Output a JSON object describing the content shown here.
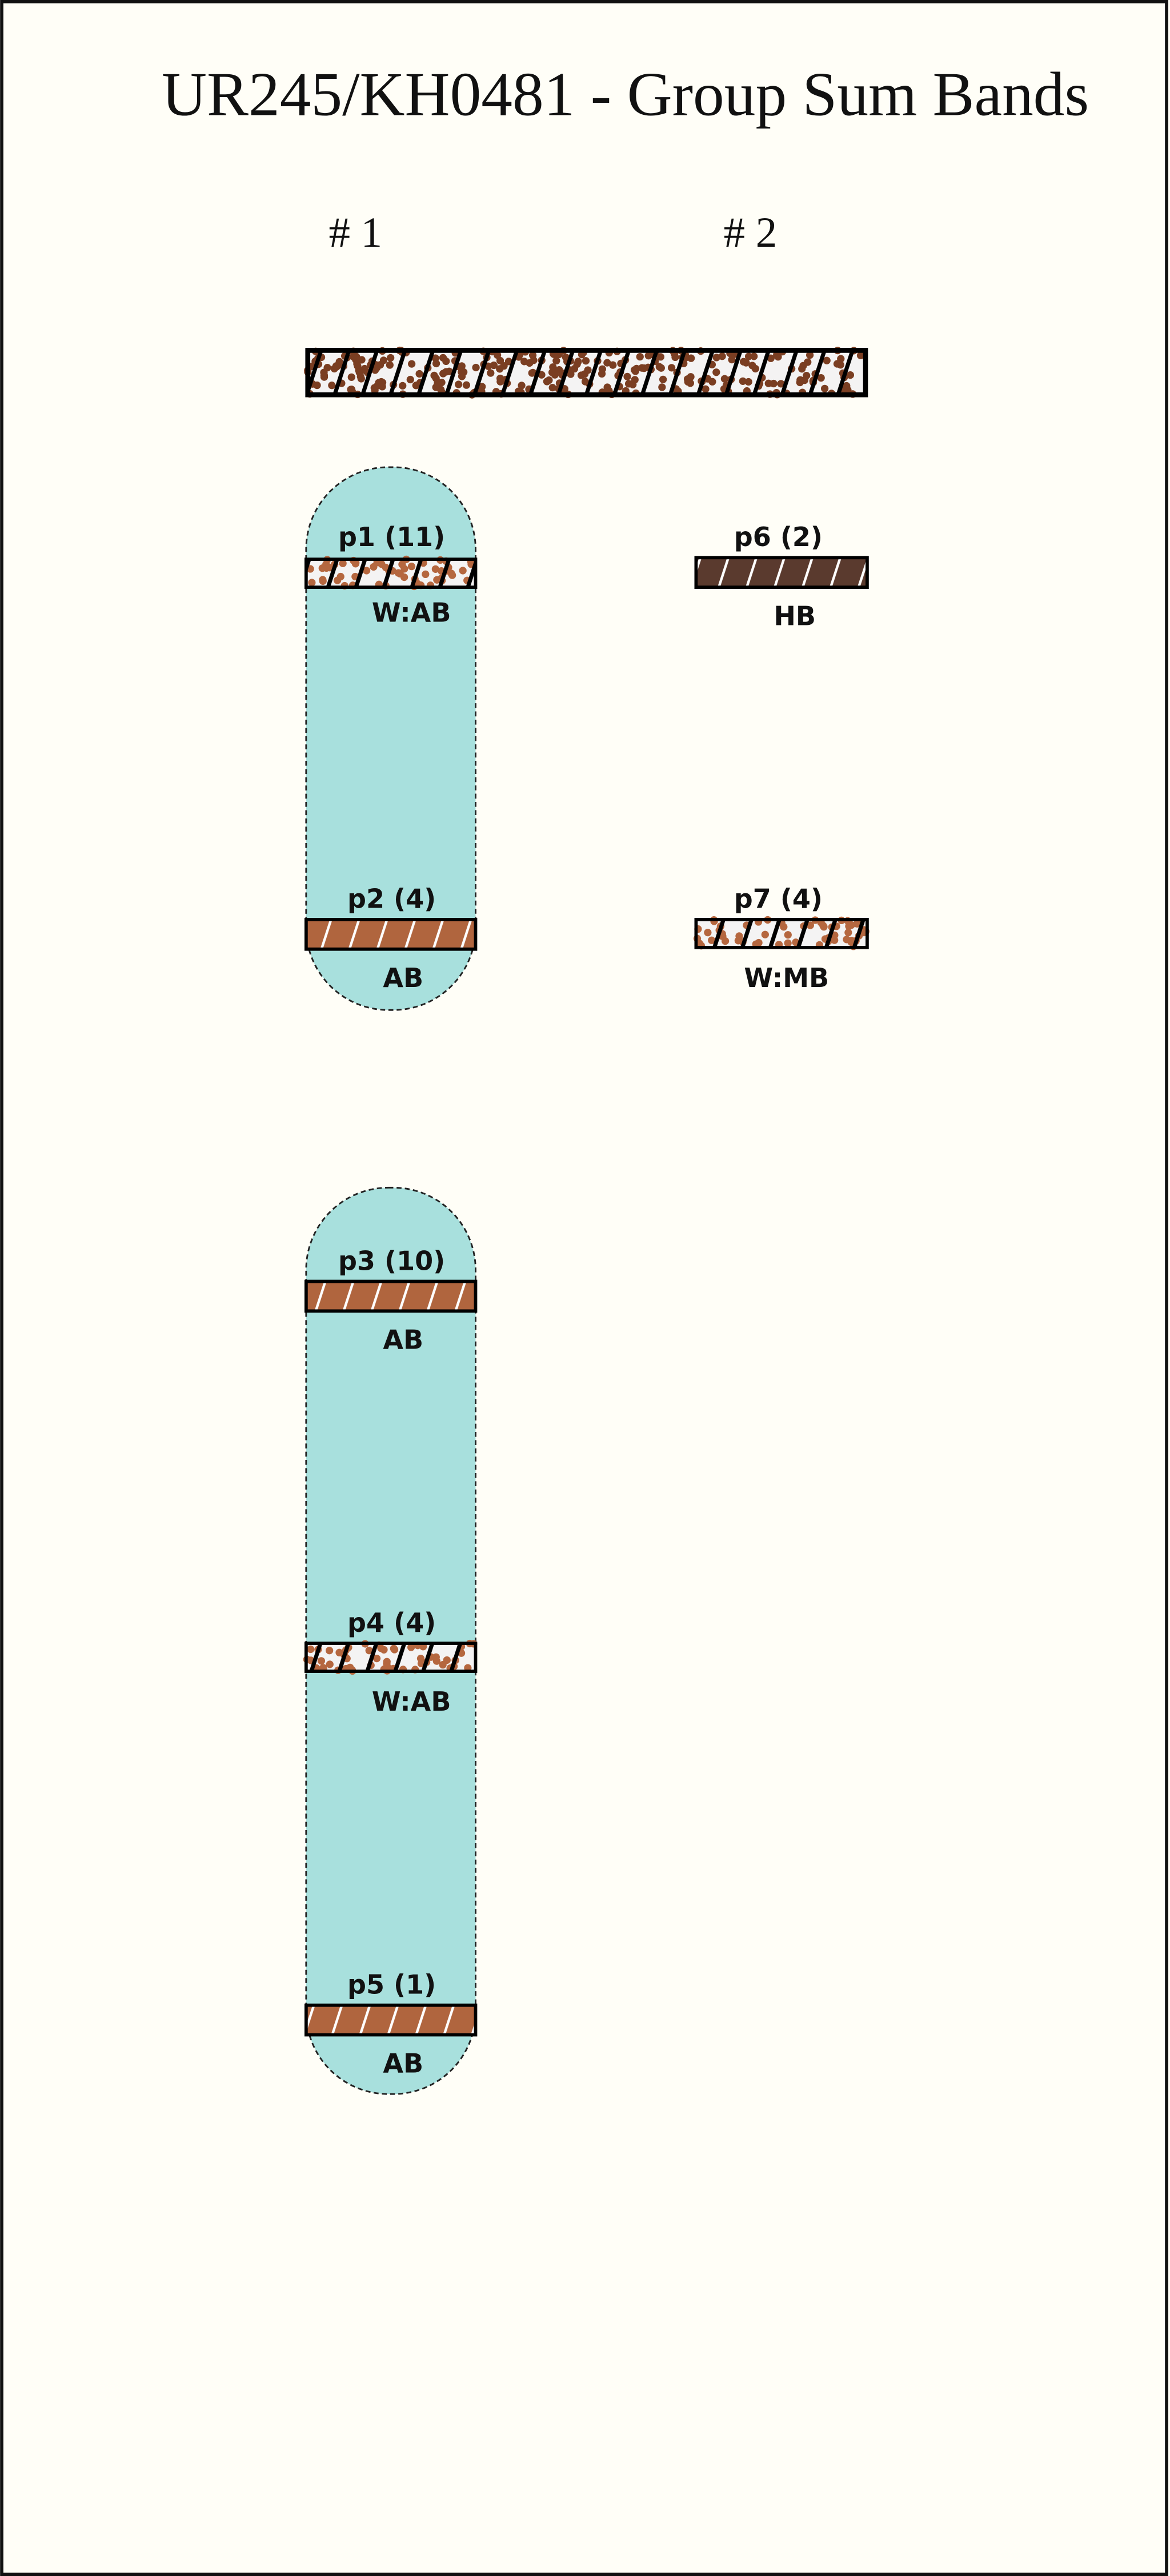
{
  "title": "UR245/KH0481 - Group Sum Bands",
  "columns": [
    "# 1",
    "# 2"
  ],
  "colors": {
    "background": "#fffef7",
    "group_fill": "#a8e0dd",
    "light_fill": "#f4f3f3",
    "dot_color": "#7a3e22",
    "dot_color_light": "#b5673f",
    "ab_fill": "#b0653e",
    "hb_fill": "#5a3a2e"
  },
  "bands": [
    {
      "id": "p1",
      "label": "p1 (11)",
      "type": "W:AB",
      "fill": "white-dotted",
      "column": 1
    },
    {
      "id": "p2",
      "label": "p2 (4)",
      "type": "AB",
      "fill": "ab",
      "column": 1
    },
    {
      "id": "p3",
      "label": "p3 (10)",
      "type": "AB",
      "fill": "ab",
      "column": 1
    },
    {
      "id": "p4",
      "label": "p4 (4)",
      "type": "W:AB",
      "fill": "white-dotted",
      "column": 1
    },
    {
      "id": "p5",
      "label": "p5 (1)",
      "type": "AB",
      "fill": "ab",
      "column": 1
    },
    {
      "id": "p6",
      "label": "p6 (2)",
      "type": "HB",
      "fill": "hb",
      "column": 2
    },
    {
      "id": "p7",
      "label": "p7 (4)",
      "type": "W:MB",
      "fill": "white-dotted",
      "column": 2
    }
  ],
  "groups": [
    {
      "members": [
        "p1",
        "p2"
      ]
    },
    {
      "members": [
        "p3",
        "p4",
        "p5"
      ]
    }
  ]
}
